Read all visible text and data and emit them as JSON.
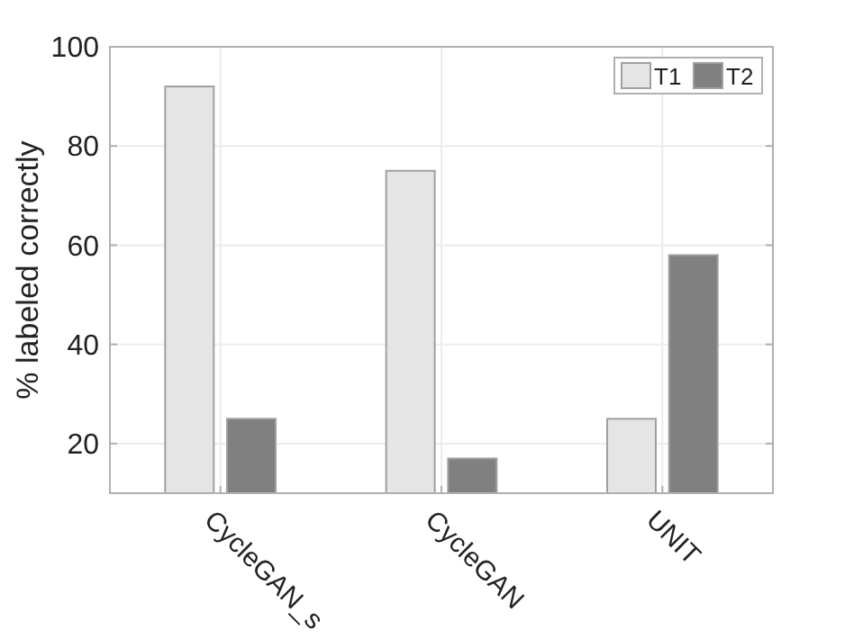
{
  "chart_data": {
    "type": "bar",
    "ylabel": "% labeled correctly",
    "categories": [
      "CycleGAN_s",
      "CycleGAN",
      "UNIT"
    ],
    "series": [
      {
        "name": "T1",
        "color": "#e5e5e5",
        "values": [
          92,
          75,
          25
        ]
      },
      {
        "name": "T2",
        "color": "#808080",
        "values": [
          25,
          17,
          58
        ]
      }
    ],
    "ylim": [
      10,
      100
    ],
    "yticks": [
      20,
      40,
      60,
      80,
      100
    ],
    "grid": true,
    "legend": "top right"
  }
}
